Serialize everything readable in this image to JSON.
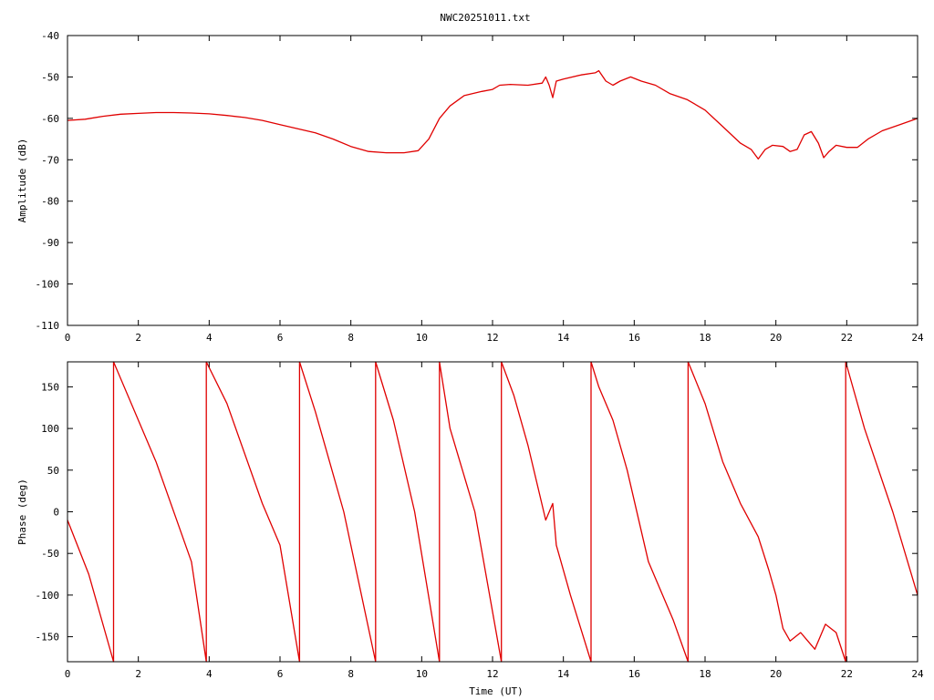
{
  "chart_data": [
    {
      "type": "line",
      "title": "NWC20251011.txt",
      "xlabel": "",
      "ylabel": "Amplitude (dB)",
      "xlim": [
        0,
        24
      ],
      "ylim": [
        -110,
        -40
      ],
      "xticks": [
        0,
        2,
        4,
        6,
        8,
        10,
        12,
        14,
        16,
        18,
        20,
        22,
        24
      ],
      "yticks": [
        -110,
        -100,
        -90,
        -80,
        -70,
        -60,
        -50,
        -40
      ],
      "grid": false,
      "legend": "none",
      "line_color": "#e00000",
      "series": [
        {
          "name": "",
          "points": [
            [
              0,
              -60.5
            ],
            [
              0.5,
              -60.2
            ],
            [
              1,
              -59.5
            ],
            [
              1.5,
              -59
            ],
            [
              2,
              -58.8
            ],
            [
              2.5,
              -58.6
            ],
            [
              3,
              -58.6
            ],
            [
              3.5,
              -58.7
            ],
            [
              4,
              -58.9
            ],
            [
              4.5,
              -59.3
            ],
            [
              5,
              -59.8
            ],
            [
              5.5,
              -60.5
            ],
            [
              6,
              -61.5
            ],
            [
              6.5,
              -62.5
            ],
            [
              7,
              -63.5
            ],
            [
              7.5,
              -65
            ],
            [
              8,
              -66.8
            ],
            [
              8.5,
              -68
            ],
            [
              9,
              -68.3
            ],
            [
              9.5,
              -68.3
            ],
            [
              9.9,
              -67.8
            ],
            [
              10.2,
              -65
            ],
            [
              10.5,
              -60
            ],
            [
              10.8,
              -57
            ],
            [
              11.2,
              -54.5
            ],
            [
              11.7,
              -53.5
            ],
            [
              12,
              -53
            ],
            [
              12.2,
              -52
            ],
            [
              12.5,
              -51.8
            ],
            [
              13,
              -52
            ],
            [
              13.4,
              -51.5
            ],
            [
              13.5,
              -50
            ],
            [
              13.6,
              -52
            ],
            [
              13.7,
              -55
            ],
            [
              13.8,
              -51
            ],
            [
              14,
              -50.5
            ],
            [
              14.5,
              -49.5
            ],
            [
              14.9,
              -49
            ],
            [
              15,
              -48.5
            ],
            [
              15.2,
              -51
            ],
            [
              15.4,
              -52
            ],
            [
              15.6,
              -51
            ],
            [
              15.9,
              -50
            ],
            [
              16.2,
              -51
            ],
            [
              16.6,
              -52
            ],
            [
              17,
              -54
            ],
            [
              17.5,
              -55.5
            ],
            [
              18,
              -58
            ],
            [
              18.5,
              -62
            ],
            [
              19,
              -66
            ],
            [
              19.3,
              -67.5
            ],
            [
              19.5,
              -69.8
            ],
            [
              19.7,
              -67.5
            ],
            [
              19.9,
              -66.5
            ],
            [
              20.2,
              -66.8
            ],
            [
              20.4,
              -68
            ],
            [
              20.6,
              -67.5
            ],
            [
              20.8,
              -64
            ],
            [
              21,
              -63.2
            ],
            [
              21.2,
              -66
            ],
            [
              21.35,
              -69.5
            ],
            [
              21.5,
              -68
            ],
            [
              21.7,
              -66.5
            ],
            [
              22,
              -67
            ],
            [
              22.3,
              -67
            ],
            [
              22.6,
              -65
            ],
            [
              23,
              -63
            ],
            [
              23.5,
              -61.5
            ],
            [
              24,
              -60
            ]
          ]
        }
      ]
    },
    {
      "type": "line",
      "title": "",
      "xlabel": "Time (UT)",
      "ylabel": "Phase (deg)",
      "xlim": [
        0,
        24
      ],
      "ylim": [
        -180,
        180
      ],
      "xticks": [
        0,
        2,
        4,
        6,
        8,
        10,
        12,
        14,
        16,
        18,
        20,
        22,
        24
      ],
      "yticks": [
        -150,
        -100,
        -50,
        0,
        50,
        100,
        150
      ],
      "grid": false,
      "legend": "none",
      "line_color": "#e00000",
      "series": [
        {
          "name": "",
          "points": [
            [
              0,
              -10
            ],
            [
              0.6,
              -75
            ],
            [
              1.3,
              -180
            ],
            [
              1.3,
              180
            ],
            [
              2.5,
              60
            ],
            [
              3.5,
              -60
            ],
            [
              3.92,
              -180
            ],
            [
              3.92,
              180
            ],
            [
              4.5,
              130
            ],
            [
              5.5,
              10
            ],
            [
              6,
              -40
            ],
            [
              6.55,
              -180
            ],
            [
              6.55,
              180
            ],
            [
              7,
              120
            ],
            [
              7.8,
              0
            ],
            [
              8.7,
              -180
            ],
            [
              8.7,
              180
            ],
            [
              9.2,
              110
            ],
            [
              9.8,
              0
            ],
            [
              10.5,
              -180
            ],
            [
              10.5,
              180
            ],
            [
              10.8,
              100
            ],
            [
              11.5,
              0
            ],
            [
              12.25,
              -180
            ],
            [
              12.25,
              180
            ],
            [
              12.6,
              140
            ],
            [
              13,
              80
            ],
            [
              13.5,
              -10
            ],
            [
              13.7,
              10
            ],
            [
              13.8,
              -40
            ],
            [
              14.2,
              -100
            ],
            [
              14.78,
              -180
            ],
            [
              14.78,
              180
            ],
            [
              15,
              150
            ],
            [
              15.4,
              110
            ],
            [
              15.8,
              50
            ],
            [
              16.4,
              -60
            ],
            [
              17.1,
              -130
            ],
            [
              17.52,
              -180
            ],
            [
              17.52,
              180
            ],
            [
              18,
              130
            ],
            [
              18.5,
              60
            ],
            [
              19,
              10
            ],
            [
              19.5,
              -30
            ],
            [
              19.8,
              -70
            ],
            [
              20,
              -100
            ],
            [
              20.2,
              -140
            ],
            [
              20.4,
              -155
            ],
            [
              20.7,
              -145
            ],
            [
              20.9,
              -155
            ],
            [
              21.1,
              -165
            ],
            [
              21.4,
              -135
            ],
            [
              21.7,
              -145
            ],
            [
              21.97,
              -180
            ],
            [
              21.97,
              180
            ],
            [
              22.5,
              100
            ],
            [
              23.3,
              0
            ],
            [
              24,
              -100
            ]
          ]
        }
      ]
    }
  ]
}
